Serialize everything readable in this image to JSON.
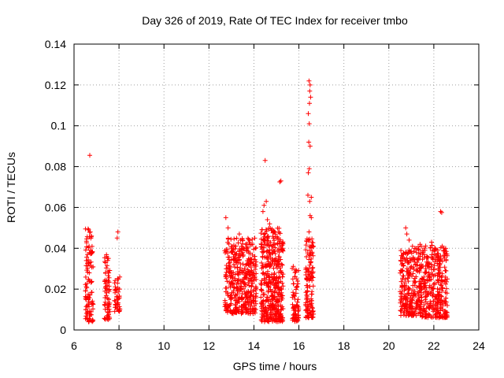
{
  "chart_data": {
    "type": "scatter",
    "title": "Day 326 of 2019, Rate Of TEC Index for receiver tmbo",
    "xlabel": "GPS time / hours",
    "ylabel": "ROTI / TECUs",
    "xlim": [
      6,
      24
    ],
    "ylim": [
      0,
      0.14
    ],
    "xticks": [
      6,
      8,
      10,
      12,
      14,
      16,
      18,
      20,
      22,
      24
    ],
    "yticks": [
      0,
      0.02,
      0.04,
      0.06,
      0.08,
      0.1,
      0.12,
      0.14
    ],
    "xtick_labels": [
      "6",
      "8",
      "10",
      "12",
      "14",
      "16",
      "18",
      "20",
      "22",
      "24"
    ],
    "ytick_labels": [
      "0",
      "0.02",
      "0.04",
      "0.06",
      "0.08",
      "0.1",
      "0.12",
      "0.14"
    ],
    "grid": true,
    "marker": "plus",
    "color": "#ff0000",
    "clusters": [
      {
        "x_range": [
          6.5,
          6.85
        ],
        "y_range": [
          0.004,
          0.05
        ],
        "count": 110
      },
      {
        "x_range": [
          7.35,
          7.6
        ],
        "y_range": [
          0.005,
          0.037
        ],
        "count": 70
      },
      {
        "x_range": [
          7.8,
          8.05
        ],
        "y_range": [
          0.009,
          0.027
        ],
        "count": 45
      },
      {
        "x_range": [
          12.7,
          13.1
        ],
        "y_range": [
          0.007,
          0.045
        ],
        "count": 110
      },
      {
        "x_range": [
          13.1,
          14.1
        ],
        "y_range": [
          0.008,
          0.045
        ],
        "count": 320
      },
      {
        "x_range": [
          14.3,
          15.3
        ],
        "y_range": [
          0.004,
          0.05
        ],
        "count": 420
      },
      {
        "x_range": [
          15.7,
          16.0
        ],
        "y_range": [
          0.004,
          0.032
        ],
        "count": 70
      },
      {
        "x_range": [
          16.3,
          16.65
        ],
        "y_range": [
          0.006,
          0.045
        ],
        "count": 130
      },
      {
        "x_range": [
          20.5,
          21.3
        ],
        "y_range": [
          0.007,
          0.04
        ],
        "count": 220
      },
      {
        "x_range": [
          21.3,
          22.6
        ],
        "y_range": [
          0.006,
          0.042
        ],
        "count": 380
      }
    ],
    "points": [
      [
        6.7,
        0.0855
      ],
      [
        6.65,
        0.049
      ],
      [
        6.72,
        0.048
      ],
      [
        7.45,
        0.036
      ],
      [
        7.5,
        0.034
      ],
      [
        7.95,
        0.048
      ],
      [
        7.92,
        0.045
      ],
      [
        12.75,
        0.055
      ],
      [
        12.85,
        0.05
      ],
      [
        13.35,
        0.047
      ],
      [
        13.4,
        0.044
      ],
      [
        14.5,
        0.083
      ],
      [
        14.45,
        0.061
      ],
      [
        14.55,
        0.063
      ],
      [
        14.4,
        0.058
      ],
      [
        14.6,
        0.054
      ],
      [
        14.7,
        0.052
      ],
      [
        15.15,
        0.0725
      ],
      [
        15.2,
        0.073
      ],
      [
        15.1,
        0.048
      ],
      [
        16.45,
        0.122
      ],
      [
        16.5,
        0.12
      ],
      [
        16.48,
        0.117
      ],
      [
        16.52,
        0.114
      ],
      [
        16.47,
        0.111
      ],
      [
        16.42,
        0.106
      ],
      [
        16.46,
        0.101
      ],
      [
        16.44,
        0.092
      ],
      [
        16.5,
        0.09
      ],
      [
        16.46,
        0.079
      ],
      [
        16.42,
        0.077
      ],
      [
        16.4,
        0.066
      ],
      [
        16.55,
        0.065
      ],
      [
        16.48,
        0.063
      ],
      [
        16.5,
        0.056
      ],
      [
        16.55,
        0.055
      ],
      [
        16.45,
        0.048
      ],
      [
        20.75,
        0.05
      ],
      [
        20.8,
        0.047
      ],
      [
        20.9,
        0.044
      ],
      [
        21.05,
        0.041
      ],
      [
        21.9,
        0.043
      ],
      [
        22.05,
        0.04
      ],
      [
        22.3,
        0.058
      ],
      [
        22.35,
        0.0575
      ]
    ]
  }
}
